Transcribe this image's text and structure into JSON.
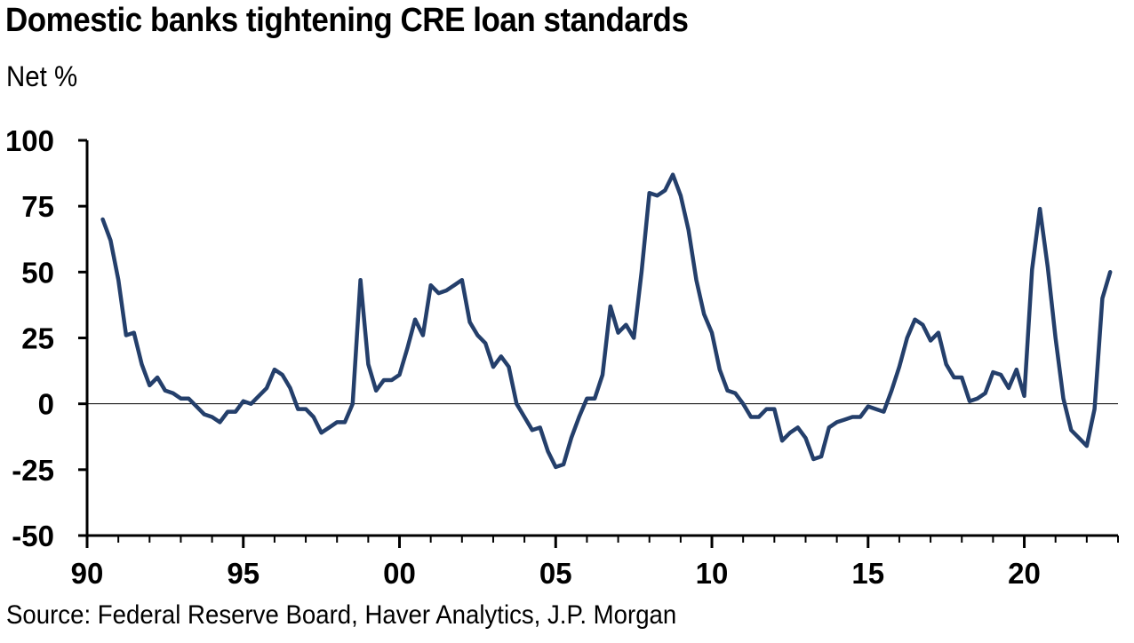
{
  "title": "Domestic banks tightening CRE loan standards",
  "subtitle": "Net %",
  "source": "Source: Federal Reserve Board, Haver Analytics, J.P. Morgan",
  "colors": {
    "line": "#243f6b",
    "axis": "#000000",
    "zero_line": "#000000"
  },
  "chart_data": {
    "type": "line",
    "title": "Domestic banks tightening CRE loan standards",
    "ylabel": "Net %",
    "xlabel": "",
    "ylim": [
      -50,
      100
    ],
    "xlim": [
      1990.0,
      2023.0
    ],
    "y_ticks": [
      100,
      75,
      50,
      25,
      0,
      -25,
      -50
    ],
    "y_tick_labels": [
      "100",
      "75",
      "50",
      "25",
      "0",
      "-25",
      "-50"
    ],
    "x_ticks": [
      1990,
      1995,
      2000,
      2005,
      2010,
      2015,
      2020
    ],
    "x_tick_labels": [
      "90",
      "95",
      "00",
      "05",
      "10",
      "15",
      "20"
    ],
    "grid": false,
    "legend": "none",
    "series": [
      {
        "x": [
          1990.5,
          1990.75,
          1991.0,
          1991.25,
          1991.5,
          1991.75,
          1992.0,
          1992.25,
          1992.5,
          1992.75,
          1993.0,
          1993.25,
          1993.5,
          1993.75,
          1994.0,
          1994.25,
          1994.5,
          1994.75,
          1995.0,
          1995.25,
          1995.5,
          1995.75,
          1996.0,
          1996.25,
          1996.5,
          1996.75,
          1997.0,
          1997.25,
          1997.5,
          1997.75,
          1998.0,
          1998.25,
          1998.5,
          1998.75,
          1999.0,
          1999.25,
          1999.5,
          1999.75,
          2000.0,
          2000.25,
          2000.5,
          2000.75,
          2001.0,
          2001.25,
          2001.5,
          2001.75,
          2002.0,
          2002.25,
          2002.5,
          2002.75,
          2003.0,
          2003.25,
          2003.5,
          2003.75,
          2004.0,
          2004.25,
          2004.5,
          2004.75,
          2005.0,
          2005.25,
          2005.5,
          2005.75,
          2006.0,
          2006.25,
          2006.5,
          2006.75,
          2007.0,
          2007.25,
          2007.5,
          2007.75,
          2008.0,
          2008.25,
          2008.5,
          2008.75,
          2009.0,
          2009.25,
          2009.5,
          2009.75,
          2010.0,
          2010.25,
          2010.5,
          2010.75,
          2011.0,
          2011.25,
          2011.5,
          2011.75,
          2012.0,
          2012.25,
          2012.5,
          2012.75,
          2013.0,
          2013.25,
          2013.5,
          2013.75,
          2014.0,
          2014.25,
          2014.5,
          2014.75,
          2015.0,
          2015.25,
          2015.5,
          2015.75,
          2016.0,
          2016.25,
          2016.5,
          2016.75,
          2017.0,
          2017.25,
          2017.5,
          2017.75,
          2018.0,
          2018.25,
          2018.5,
          2018.75,
          2019.0,
          2019.25,
          2019.5,
          2019.75,
          2020.0,
          2020.25,
          2020.5,
          2020.75,
          2021.0,
          2021.25,
          2021.5,
          2021.75,
          2022.0,
          2022.25,
          2022.5,
          2022.75
        ],
        "values": [
          70,
          62,
          47,
          26,
          27,
          15,
          7,
          10,
          5,
          4,
          2,
          2,
          -1,
          -4,
          -5,
          -7,
          -3,
          -3,
          1,
          0,
          3,
          6,
          13,
          11,
          6,
          -2,
          -2,
          -5,
          -11,
          -9,
          -7,
          -7,
          0,
          47,
          15,
          5,
          9,
          9,
          11,
          21,
          32,
          26,
          45,
          42,
          43,
          45,
          47,
          31,
          26,
          23,
          14,
          18,
          14,
          0,
          -5,
          -10,
          -9,
          -18,
          -24,
          -23,
          -13,
          -5,
          2,
          2,
          11,
          37,
          27,
          30,
          25,
          50,
          80,
          79,
          81,
          87,
          79,
          66,
          47,
          34,
          27,
          13,
          5,
          4,
          0,
          -5,
          -5,
          -2,
          -2,
          -14,
          -11,
          -9,
          -13,
          -21,
          -20,
          -9,
          -7,
          -6,
          -5,
          -5,
          -1,
          -2,
          -3,
          5,
          14,
          25,
          32,
          30,
          24,
          27,
          15,
          10,
          10,
          1,
          2,
          4,
          12,
          11,
          6,
          13,
          3,
          51,
          74,
          52,
          25,
          2,
          -10,
          -13,
          -16,
          -2,
          40,
          50
        ]
      }
    ]
  }
}
